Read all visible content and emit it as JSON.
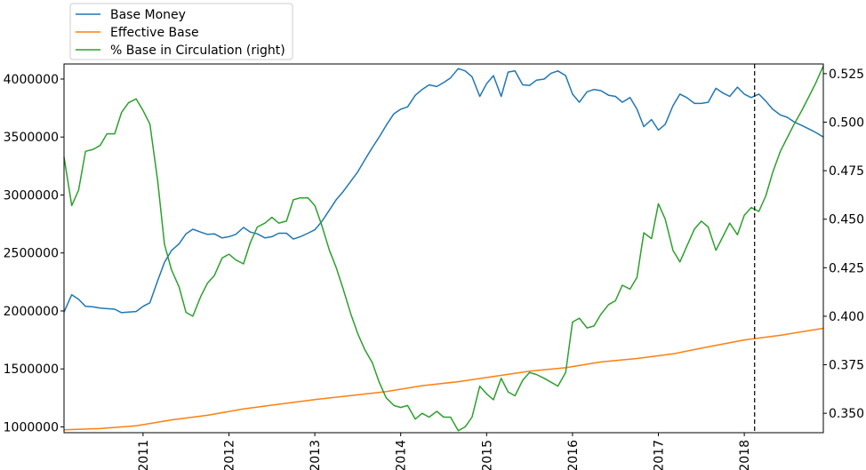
{
  "chart_data": {
    "type": "line",
    "dual_axis": true,
    "x_range": [
      2010.08,
      2018.92
    ],
    "x_ticks": [
      {
        "value": 2011,
        "label": "2011"
      },
      {
        "value": 2012,
        "label": "2012"
      },
      {
        "value": 2013,
        "label": "2013"
      },
      {
        "value": 2014,
        "label": "2014"
      },
      {
        "value": 2015,
        "label": "2015"
      },
      {
        "value": 2016,
        "label": "2016"
      },
      {
        "value": 2017,
        "label": "2017"
      },
      {
        "value": 2018,
        "label": "2018"
      }
    ],
    "y_left": {
      "range": [
        950000,
        4130000
      ],
      "ticks": [
        {
          "value": 1000000,
          "label": "1000000"
        },
        {
          "value": 1500000,
          "label": "1500000"
        },
        {
          "value": 2000000,
          "label": "2000000"
        },
        {
          "value": 2500000,
          "label": "2500000"
        },
        {
          "value": 3000000,
          "label": "3000000"
        },
        {
          "value": 3500000,
          "label": "3500000"
        },
        {
          "value": 4000000,
          "label": "4000000"
        }
      ]
    },
    "y_right": {
      "range": [
        0.34,
        0.53
      ],
      "ticks": [
        {
          "value": 0.35,
          "label": "0.350"
        },
        {
          "value": 0.375,
          "label": "0.375"
        },
        {
          "value": 0.4,
          "label": "0.400"
        },
        {
          "value": 0.425,
          "label": "0.425"
        },
        {
          "value": 0.45,
          "label": "0.450"
        },
        {
          "value": 0.475,
          "label": "0.475"
        },
        {
          "value": 0.5,
          "label": "0.500"
        },
        {
          "value": 0.525,
          "label": "0.525"
        }
      ]
    },
    "vline": {
      "x": 2018.12,
      "style": "dashed",
      "color": "#000000"
    },
    "legend": {
      "placement": "above-top-left"
    },
    "series": [
      {
        "name": "Base Money",
        "axis": "left",
        "color": "#1f77b4",
        "x": [
          2010.08,
          2010.17,
          2010.25,
          2010.33,
          2010.42,
          2010.5,
          2010.58,
          2010.67,
          2010.75,
          2010.83,
          2010.92,
          2011.0,
          2011.08,
          2011.17,
          2011.25,
          2011.33,
          2011.42,
          2011.5,
          2011.58,
          2011.67,
          2011.75,
          2011.83,
          2011.92,
          2012.0,
          2012.08,
          2012.17,
          2012.25,
          2012.33,
          2012.42,
          2012.5,
          2012.58,
          2012.67,
          2012.75,
          2012.83,
          2012.92,
          2013.0,
          2013.08,
          2013.17,
          2013.25,
          2013.33,
          2013.42,
          2013.5,
          2013.58,
          2013.67,
          2013.75,
          2013.83,
          2013.92,
          2014.0,
          2014.08,
          2014.17,
          2014.25,
          2014.33,
          2014.42,
          2014.5,
          2014.58,
          2014.67,
          2014.75,
          2014.83,
          2014.92,
          2015.0,
          2015.08,
          2015.17,
          2015.25,
          2015.33,
          2015.42,
          2015.5,
          2015.58,
          2015.67,
          2015.75,
          2015.83,
          2015.92,
          2016.0,
          2016.08,
          2016.17,
          2016.25,
          2016.33,
          2016.42,
          2016.5,
          2016.58,
          2016.67,
          2016.75,
          2016.83,
          2016.92,
          2017.0,
          2017.08,
          2017.17,
          2017.25,
          2017.33,
          2017.42,
          2017.5,
          2017.58,
          2017.67,
          2017.75,
          2017.83,
          2017.92,
          2018.0,
          2018.08,
          2018.17,
          2018.25,
          2018.33,
          2018.42,
          2018.5,
          2018.58,
          2018.67,
          2018.75,
          2018.83,
          2018.92
        ],
        "values": [
          1990000,
          2140000,
          2100000,
          2040000,
          2035000,
          2025000,
          2020000,
          2015000,
          1985000,
          1990000,
          1995000,
          2040000,
          2070000,
          2260000,
          2420000,
          2520000,
          2580000,
          2665000,
          2705000,
          2680000,
          2660000,
          2665000,
          2630000,
          2640000,
          2660000,
          2720000,
          2680000,
          2665000,
          2630000,
          2640000,
          2670000,
          2670000,
          2620000,
          2640000,
          2670000,
          2700000,
          2770000,
          2870000,
          2960000,
          3030000,
          3120000,
          3200000,
          3300000,
          3410000,
          3500000,
          3600000,
          3700000,
          3740000,
          3760000,
          3860000,
          3910000,
          3950000,
          3935000,
          3970000,
          4010000,
          4090000,
          4070000,
          4020000,
          3850000,
          3960000,
          4030000,
          3850000,
          4060000,
          4070000,
          3950000,
          3945000,
          3990000,
          4000000,
          4050000,
          4070000,
          4030000,
          3870000,
          3800000,
          3890000,
          3910000,
          3900000,
          3860000,
          3850000,
          3800000,
          3840000,
          3740000,
          3590000,
          3650000,
          3560000,
          3610000,
          3770000,
          3870000,
          3840000,
          3790000,
          3790000,
          3800000,
          3920000,
          3880000,
          3850000,
          3930000,
          3870000,
          3840000,
          3870000,
          3810000,
          3740000,
          3690000,
          3670000,
          3630000,
          3600000,
          3570000,
          3540000,
          3500000
        ]
      },
      {
        "name": "Effective Base",
        "axis": "left",
        "color": "#ff7f0e",
        "x": [
          2010.08,
          2010.5,
          2010.92,
          2011.33,
          2011.75,
          2012.17,
          2012.58,
          2013.0,
          2013.42,
          2013.83,
          2014.25,
          2014.67,
          2015.08,
          2015.5,
          2015.92,
          2016.33,
          2016.75,
          2017.17,
          2017.58,
          2018.0,
          2018.42,
          2018.92
        ],
        "values": [
          975000,
          985000,
          1010000,
          1060000,
          1100000,
          1155000,
          1195000,
          1235000,
          1270000,
          1305000,
          1355000,
          1390000,
          1435000,
          1480000,
          1510000,
          1560000,
          1590000,
          1630000,
          1690000,
          1750000,
          1790000,
          1850000
        ]
      },
      {
        "name": "% Base in Circulation (right)",
        "axis": "right",
        "color": "#2ca02c",
        "x": [
          2010.08,
          2010.17,
          2010.25,
          2010.33,
          2010.42,
          2010.5,
          2010.58,
          2010.67,
          2010.75,
          2010.83,
          2010.92,
          2011.0,
          2011.08,
          2011.17,
          2011.25,
          2011.33,
          2011.42,
          2011.5,
          2011.58,
          2011.67,
          2011.75,
          2011.83,
          2011.92,
          2012.0,
          2012.08,
          2012.17,
          2012.25,
          2012.33,
          2012.42,
          2012.5,
          2012.58,
          2012.67,
          2012.75,
          2012.83,
          2012.92,
          2013.0,
          2013.08,
          2013.17,
          2013.25,
          2013.33,
          2013.42,
          2013.5,
          2013.58,
          2013.67,
          2013.75,
          2013.83,
          2013.92,
          2014.0,
          2014.08,
          2014.17,
          2014.25,
          2014.33,
          2014.42,
          2014.5,
          2014.58,
          2014.67,
          2014.75,
          2014.83,
          2014.92,
          2015.0,
          2015.08,
          2015.17,
          2015.25,
          2015.33,
          2015.42,
          2015.5,
          2015.58,
          2015.67,
          2015.75,
          2015.83,
          2015.92,
          2016.0,
          2016.08,
          2016.17,
          2016.25,
          2016.33,
          2016.42,
          2016.5,
          2016.58,
          2016.67,
          2016.75,
          2016.83,
          2016.92,
          2017.0,
          2017.08,
          2017.17,
          2017.25,
          2017.33,
          2017.42,
          2017.5,
          2017.58,
          2017.67,
          2017.75,
          2017.83,
          2017.92,
          2018.0,
          2018.08,
          2018.17,
          2018.25,
          2018.33,
          2018.42,
          2018.5,
          2018.58,
          2018.67,
          2018.75,
          2018.83,
          2018.92
        ],
        "values": [
          0.482,
          0.457,
          0.465,
          0.485,
          0.486,
          0.488,
          0.494,
          0.494,
          0.505,
          0.51,
          0.512,
          0.506,
          0.499,
          0.47,
          0.437,
          0.424,
          0.415,
          0.402,
          0.4,
          0.41,
          0.417,
          0.421,
          0.43,
          0.432,
          0.429,
          0.427,
          0.438,
          0.446,
          0.448,
          0.451,
          0.448,
          0.449,
          0.46,
          0.461,
          0.461,
          0.457,
          0.447,
          0.434,
          0.425,
          0.414,
          0.401,
          0.391,
          0.383,
          0.376,
          0.366,
          0.358,
          0.354,
          0.353,
          0.354,
          0.347,
          0.35,
          0.348,
          0.351,
          0.348,
          0.348,
          0.341,
          0.343,
          0.348,
          0.364,
          0.36,
          0.357,
          0.368,
          0.361,
          0.359,
          0.367,
          0.371,
          0.37,
          0.368,
          0.366,
          0.364,
          0.371,
          0.397,
          0.399,
          0.394,
          0.395,
          0.401,
          0.406,
          0.408,
          0.416,
          0.414,
          0.42,
          0.443,
          0.44,
          0.458,
          0.45,
          0.434,
          0.428,
          0.436,
          0.445,
          0.449,
          0.446,
          0.434,
          0.441,
          0.448,
          0.442,
          0.452,
          0.456,
          0.454,
          0.462,
          0.474,
          0.485,
          0.492,
          0.499,
          0.506,
          0.513,
          0.52,
          0.529
        ]
      }
    ]
  }
}
